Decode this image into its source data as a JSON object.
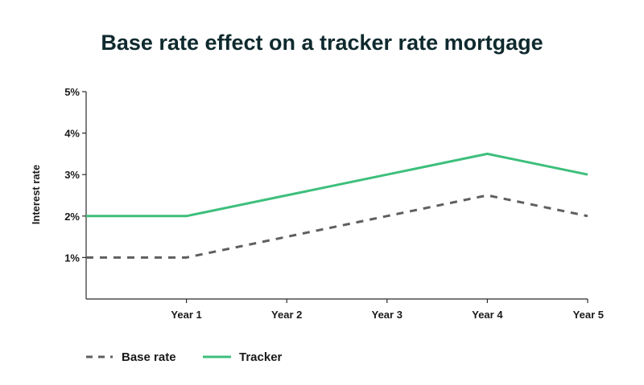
{
  "chart_data": {
    "type": "line",
    "title": "Base rate effect on a tracker rate mortgage",
    "xlabel": "",
    "ylabel": "Interest rate",
    "x": [
      0,
      1,
      2,
      3,
      4,
      5
    ],
    "x_tick_values": [
      1,
      2,
      3,
      4,
      5
    ],
    "x_tick_labels": [
      "Year 1",
      "Year 2",
      "Year 3",
      "Year 4",
      "Year 5"
    ],
    "y_tick_values": [
      1,
      2,
      3,
      4,
      5
    ],
    "y_tick_labels": [
      "1%",
      "2%",
      "3%",
      "4%",
      "5%"
    ],
    "xlim": [
      0,
      5
    ],
    "ylim": [
      0,
      5
    ],
    "grid": false,
    "legend_position": "bottom-left",
    "series": [
      {
        "name": "Base rate",
        "values": [
          1,
          1,
          1.5,
          2,
          2.5,
          2
        ],
        "color": "#5f5f5f",
        "style": "dashed"
      },
      {
        "name": "Tracker",
        "values": [
          2,
          2,
          2.5,
          3,
          3.5,
          3
        ],
        "color": "#3dbf7c",
        "style": "solid"
      }
    ]
  }
}
